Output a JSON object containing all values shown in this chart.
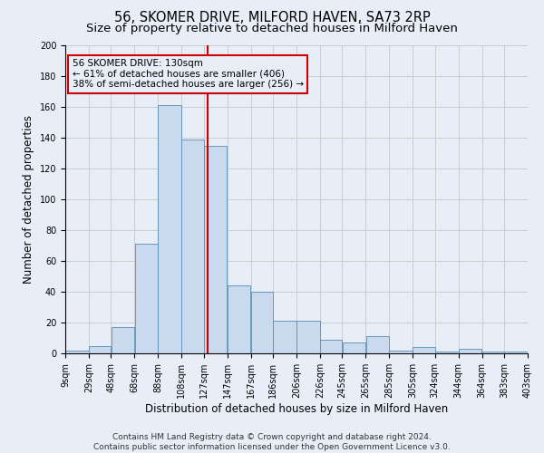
{
  "title": "56, SKOMER DRIVE, MILFORD HAVEN, SA73 2RP",
  "subtitle": "Size of property relative to detached houses in Milford Haven",
  "xlabel": "Distribution of detached houses by size in Milford Haven",
  "ylabel": "Number of detached properties",
  "footnote1": "Contains HM Land Registry data © Crown copyright and database right 2024.",
  "footnote2": "Contains public sector information licensed under the Open Government Licence v3.0.",
  "annotation_line1": "56 SKOMER DRIVE: 130sqm",
  "annotation_line2": "← 61% of detached houses are smaller (406)",
  "annotation_line3": "38% of semi-detached houses are larger (256) →",
  "bar_values": [
    2,
    5,
    17,
    71,
    161,
    139,
    135,
    44,
    40,
    21,
    21,
    9,
    7,
    11,
    2,
    4,
    1,
    3,
    1,
    1
  ],
  "bin_edges": [
    9,
    29,
    48,
    68,
    88,
    108,
    127,
    147,
    167,
    186,
    206,
    226,
    245,
    265,
    285,
    305,
    324,
    344,
    364,
    383,
    403
  ],
  "tick_labels": [
    "9sqm",
    "29sqm",
    "48sqm",
    "68sqm",
    "88sqm",
    "108sqm",
    "127sqm",
    "147sqm",
    "167sqm",
    "186sqm",
    "206sqm",
    "226sqm",
    "245sqm",
    "265sqm",
    "285sqm",
    "305sqm",
    "324sqm",
    "344sqm",
    "364sqm",
    "383sqm",
    "403sqm"
  ],
  "bar_color": "#c9d9ee",
  "bar_edge_color": "#5b8db8",
  "vline_x": 130,
  "vline_color": "#cc0000",
  "annotation_box_color": "#cc0000",
  "ylim": [
    0,
    200
  ],
  "yticks": [
    0,
    20,
    40,
    60,
    80,
    100,
    120,
    140,
    160,
    180,
    200
  ],
  "grid_color": "#cccccc",
  "background_color": "#e8eef7",
  "title_fontsize": 10.5,
  "subtitle_fontsize": 9.5,
  "axis_label_fontsize": 8.5,
  "tick_fontsize": 7,
  "footnote_fontsize": 6.5
}
